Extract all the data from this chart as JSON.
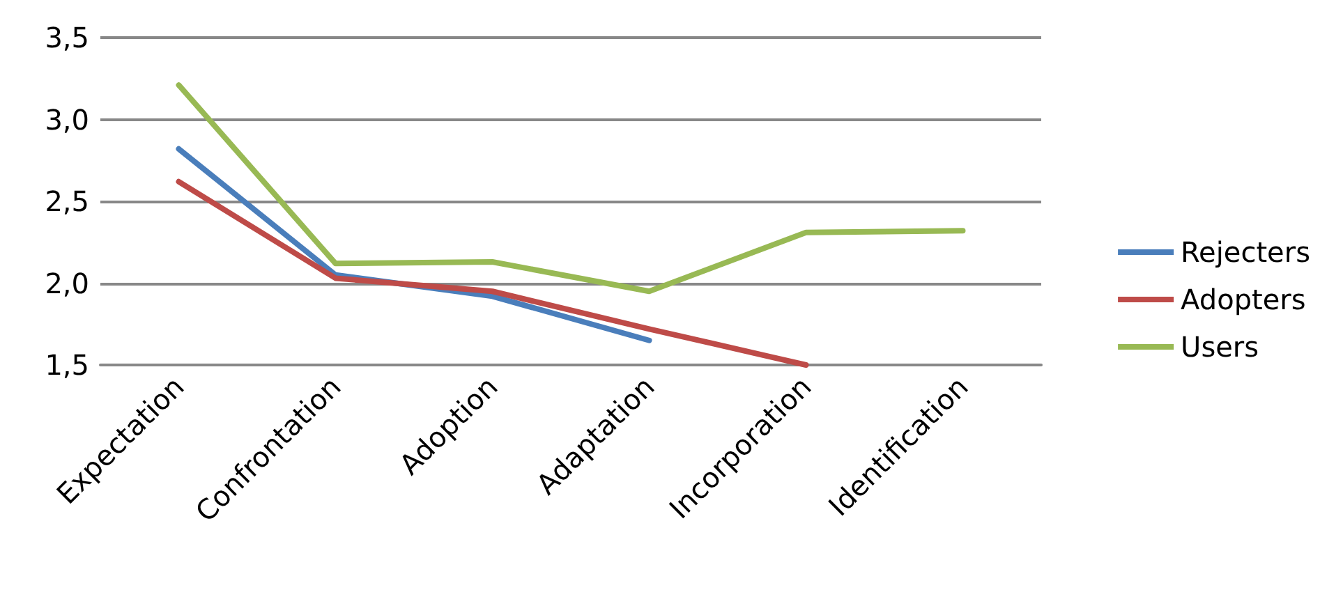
{
  "chart_data": {
    "type": "line",
    "categories": [
      "Expectation",
      "Confrontation",
      "Adoption",
      "Adaptation",
      "Incorporation",
      "Identification"
    ],
    "series": [
      {
        "name": "Rejecters",
        "color": "#4a7ebb",
        "values": [
          2.82,
          2.05,
          1.92,
          1.65,
          null,
          null
        ]
      },
      {
        "name": "Adopters",
        "color": "#be4b48",
        "values": [
          2.62,
          2.03,
          1.95,
          1.72,
          1.5,
          null
        ]
      },
      {
        "name": "Users",
        "color": "#98b954",
        "values": [
          3.21,
          2.12,
          2.13,
          1.95,
          2.31,
          2.32
        ]
      }
    ],
    "ylim": [
      1.5,
      3.5
    ],
    "yticks": [
      {
        "value": 1.5,
        "label": "1,5"
      },
      {
        "value": 2,
        "label": "2,0"
      },
      {
        "value": 2.5,
        "label": "2,5"
      },
      {
        "value": 3,
        "label": "3,0"
      },
      {
        "value": 3.5,
        "label": "3,5"
      }
    ],
    "grid": "y",
    "legend": "right",
    "marker": "none",
    "line_style": "solid"
  }
}
